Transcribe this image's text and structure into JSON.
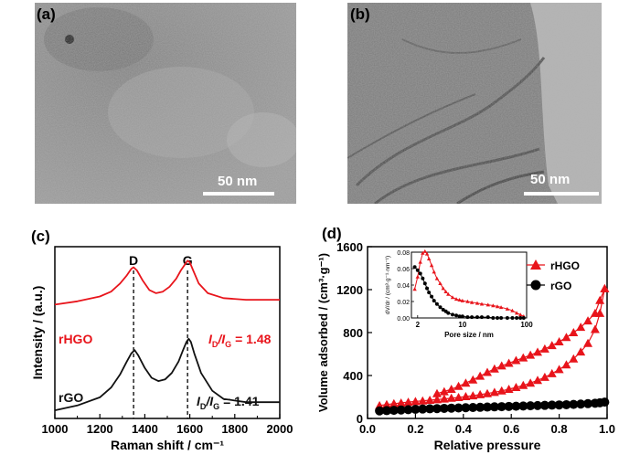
{
  "panels": {
    "a": {
      "label": "(a)",
      "scale_text": "50 nm"
    },
    "b": {
      "label": "(b)",
      "scale_text": "50 nm"
    },
    "c": {
      "label": "(c)"
    },
    "d": {
      "label": "(d)"
    }
  },
  "chart_data": [
    {
      "type": "line",
      "panel": "(c)",
      "xlabel": "Raman shift / cm⁻¹",
      "ylabel": "Intensity / (a.u.)",
      "xlim": [
        1000,
        2000
      ],
      "xticks": [
        "1000",
        "1200",
        "1400",
        "1600",
        "1800",
        "2000"
      ],
      "peaks": [
        {
          "name": "D",
          "x": 1350
        },
        {
          "name": "G",
          "x": 1590
        }
      ],
      "series": [
        {
          "name": "rHGO",
          "color": "#e8141b",
          "ratio_label_main": "I",
          "ratio_sub1": "D",
          "ratio_mid": "/I",
          "ratio_sub2": "G",
          "ratio_value": " = 1.48",
          "x": [
            1000,
            1100,
            1200,
            1250,
            1290,
            1320,
            1340,
            1350,
            1365,
            1390,
            1420,
            1450,
            1480,
            1510,
            1540,
            1560,
            1575,
            1590,
            1600,
            1615,
            1640,
            1680,
            1750,
            1850,
            2000
          ],
          "y": [
            0.7,
            0.72,
            0.75,
            0.78,
            0.83,
            0.88,
            0.92,
            0.93,
            0.91,
            0.85,
            0.79,
            0.77,
            0.78,
            0.81,
            0.86,
            0.91,
            0.94,
            0.97,
            0.96,
            0.91,
            0.83,
            0.77,
            0.74,
            0.73,
            0.73
          ]
        },
        {
          "name": "rGO",
          "color": "#111111",
          "ratio_label_main": "I",
          "ratio_sub1": "D",
          "ratio_mid": "/I",
          "ratio_sub2": "G",
          "ratio_value": " = 1.41",
          "x": [
            1000,
            1100,
            1200,
            1250,
            1290,
            1320,
            1340,
            1355,
            1370,
            1400,
            1430,
            1460,
            1490,
            1520,
            1550,
            1570,
            1585,
            1595,
            1605,
            1620,
            1650,
            1700,
            1750,
            1850,
            2000
          ],
          "y": [
            0.05,
            0.08,
            0.13,
            0.19,
            0.27,
            0.35,
            0.4,
            0.42,
            0.39,
            0.31,
            0.25,
            0.23,
            0.24,
            0.28,
            0.35,
            0.42,
            0.47,
            0.49,
            0.47,
            0.4,
            0.28,
            0.17,
            0.12,
            0.1,
            0.1
          ]
        }
      ]
    },
    {
      "type": "scatter",
      "panel": "(d)",
      "xlabel": "Relative pressure",
      "ylabel": "Volume adsorbed / (cm³·g⁻¹)",
      "xlim": [
        0,
        1
      ],
      "ylim": [
        0,
        1600
      ],
      "xticks": [
        "0.0",
        "0.2",
        "0.4",
        "0.6",
        "0.8",
        "1.0"
      ],
      "yticks": [
        "0",
        "400",
        "800",
        "1200",
        "1600"
      ],
      "series": [
        {
          "name": "rHGO",
          "color": "#e8141b",
          "marker": "triangle",
          "x": [
            0.05,
            0.08,
            0.11,
            0.14,
            0.17,
            0.2,
            0.23,
            0.26,
            0.29,
            0.32,
            0.35,
            0.38,
            0.41,
            0.44,
            0.47,
            0.5,
            0.53,
            0.56,
            0.59,
            0.62,
            0.65,
            0.68,
            0.71,
            0.74,
            0.77,
            0.8,
            0.83,
            0.86,
            0.89,
            0.92,
            0.95,
            0.97,
            0.99
          ],
          "adsorption": [
            120,
            130,
            138,
            145,
            152,
            158,
            164,
            170,
            176,
            182,
            189,
            196,
            204,
            212,
            222,
            232,
            244,
            257,
            272,
            289,
            308,
            330,
            355,
            384,
            418,
            456,
            500,
            555,
            620,
            700,
            830,
            980,
            1210
          ],
          "desorption": [
            1210,
            1100,
            980,
            910,
            850,
            800,
            755,
            715,
            680,
            648,
            618,
            590,
            565,
            540,
            515,
            490,
            462,
            430,
            395,
            360,
            330,
            300,
            272,
            250,
            232
          ]
        },
        {
          "name": "rGO",
          "color": "#000000",
          "marker": "circle",
          "x": [
            0.05,
            0.08,
            0.11,
            0.14,
            0.17,
            0.2,
            0.23,
            0.26,
            0.29,
            0.32,
            0.35,
            0.38,
            0.41,
            0.44,
            0.47,
            0.5,
            0.53,
            0.56,
            0.59,
            0.62,
            0.65,
            0.68,
            0.71,
            0.74,
            0.77,
            0.8,
            0.83,
            0.86,
            0.89,
            0.92,
            0.95,
            0.97,
            0.99
          ],
          "adsorption": [
            70,
            73,
            76,
            79,
            82,
            85,
            88,
            90,
            92,
            94,
            96,
            98,
            100,
            102,
            104,
            106,
            108,
            110,
            112,
            114,
            116,
            118,
            120,
            122,
            124,
            126,
            128,
            131,
            134,
            138,
            142,
            146,
            152
          ]
        }
      ],
      "inset": {
        "xlabel": "Pore size / nm",
        "ylabel_text": "dV/dr / (cm³·g⁻¹·nm⁻¹)",
        "xscale": "log",
        "xlim": [
          1.6,
          100
        ],
        "ylim": [
          0,
          0.08
        ],
        "xticks": [
          "2",
          "10",
          "100"
        ],
        "yticks": [
          "0.00",
          "0.02",
          "0.04",
          "0.06",
          "0.08"
        ],
        "series": [
          {
            "name": "rHGO",
            "x": [
              1.8,
              2.0,
              2.2,
              2.4,
              2.6,
              2.8,
              3.0,
              3.3,
              3.6,
              4.0,
              4.5,
              5.0,
              5.5,
              6.0,
              7.0,
              8.0,
              9.0,
              10,
              12,
              14,
              17,
              20,
              25,
              30,
              35,
              40,
              50,
              60,
              70,
              80,
              90
            ],
            "y": [
              0.035,
              0.05,
              0.068,
              0.079,
              0.081,
              0.078,
              0.072,
              0.064,
              0.056,
              0.048,
              0.042,
              0.036,
              0.032,
              0.029,
              0.025,
              0.023,
              0.022,
              0.021,
              0.02,
              0.019,
              0.018,
              0.017,
              0.016,
              0.015,
              0.014,
              0.013,
              0.011,
              0.009,
              0.006,
              0.004,
              0.002
            ]
          },
          {
            "name": "rGO",
            "x": [
              1.8,
              2.0,
              2.2,
              2.4,
              2.6,
              2.8,
              3.0,
              3.3,
              3.6,
              4.0,
              4.5,
              5.0,
              5.5,
              6.0,
              7.0,
              8.0,
              9.0,
              10,
              12,
              14,
              17,
              20,
              25,
              30,
              35,
              40,
              50,
              60,
              70,
              80,
              90
            ],
            "y": [
              0.062,
              0.058,
              0.054,
              0.048,
              0.042,
              0.036,
              0.031,
              0.026,
              0.021,
              0.017,
              0.013,
              0.01,
              0.008,
              0.006,
              0.004,
              0.003,
              0.002,
              0.002,
              0.001,
              0.001,
              0.001,
              0.001,
              0.001,
              0.0,
              0.0,
              0.0,
              0.0,
              0.0,
              0.0,
              0.0,
              0.0
            ]
          }
        ]
      }
    }
  ]
}
